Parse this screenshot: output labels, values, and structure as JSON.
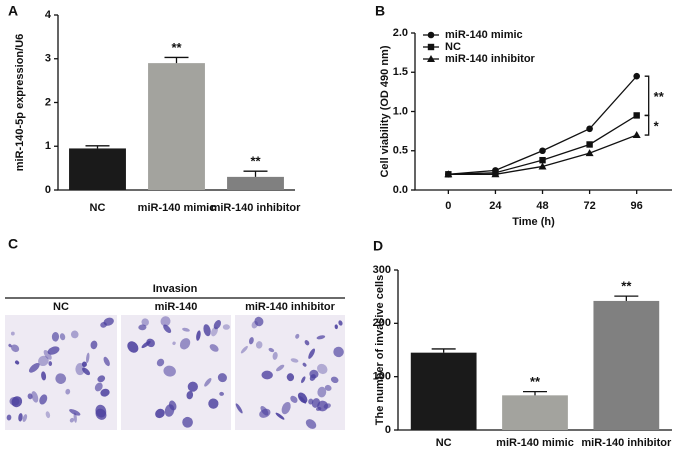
{
  "chart_data": [
    {
      "type": "bar",
      "panel": "A",
      "ylabel": "miR-140-5p expression/U6",
      "categories": [
        "NC",
        "miR-140 mimic",
        "miR-140 inhibitor"
      ],
      "values": [
        0.95,
        2.9,
        0.3
      ],
      "errors": [
        0.06,
        0.13,
        0.13
      ],
      "colors": [
        "#1a1a1a",
        "#a3a39e",
        "#808080"
      ],
      "value_annotations": [
        null,
        "**",
        "**"
      ],
      "ylim": [
        0,
        4
      ],
      "yticks": [
        0,
        1,
        2,
        3,
        4
      ]
    },
    {
      "type": "line",
      "panel": "B",
      "ylabel": "Cell viability (OD 490 nm)",
      "xlabel": "Time (h)",
      "x": [
        0,
        24,
        48,
        72,
        96
      ],
      "series": [
        {
          "name": "miR-140 mimic",
          "color": "#111111",
          "marker": "circle",
          "values": [
            0.2,
            0.25,
            0.5,
            0.78,
            1.45
          ]
        },
        {
          "name": "NC",
          "color": "#111111",
          "marker": "square",
          "values": [
            0.2,
            0.22,
            0.38,
            0.58,
            0.95
          ]
        },
        {
          "name": "miR-140 inhibitor",
          "color": "#111111",
          "marker": "triangle",
          "values": [
            0.2,
            0.2,
            0.3,
            0.47,
            0.7
          ]
        }
      ],
      "annotations": [
        "**",
        "*"
      ],
      "legend": "upper left",
      "xlim": [
        -17,
        114
      ],
      "xticks": [
        0,
        24,
        48,
        72,
        96
      ],
      "ylim": [
        0,
        2
      ],
      "yticks": [
        {
          "value": 0,
          "label": "0.0"
        },
        0.5,
        {
          "value": 1,
          "label": "1.0"
        },
        1.5,
        {
          "value": 2,
          "label": "2.0"
        }
      ]
    },
    {
      "type": "bar",
      "panel": "D",
      "ylabel": "The number of invasive cells",
      "categories": [
        "NC",
        "miR-140 mimic",
        "miR-140 inhibitor"
      ],
      "values": [
        145,
        65,
        242
      ],
      "errors": [
        7,
        7,
        9
      ],
      "colors": [
        "#1a1a1a",
        "#a3a39e",
        "#808080"
      ],
      "value_annotations": [
        null,
        "**",
        "**"
      ],
      "ylim": [
        0,
        300
      ],
      "yticks": [
        0,
        100,
        200,
        300
      ]
    }
  ],
  "image_panel": {
    "panel": "C",
    "title": "Invasion",
    "images": [
      "NC",
      "miR-140",
      "miR-140 inhibitor"
    ]
  }
}
